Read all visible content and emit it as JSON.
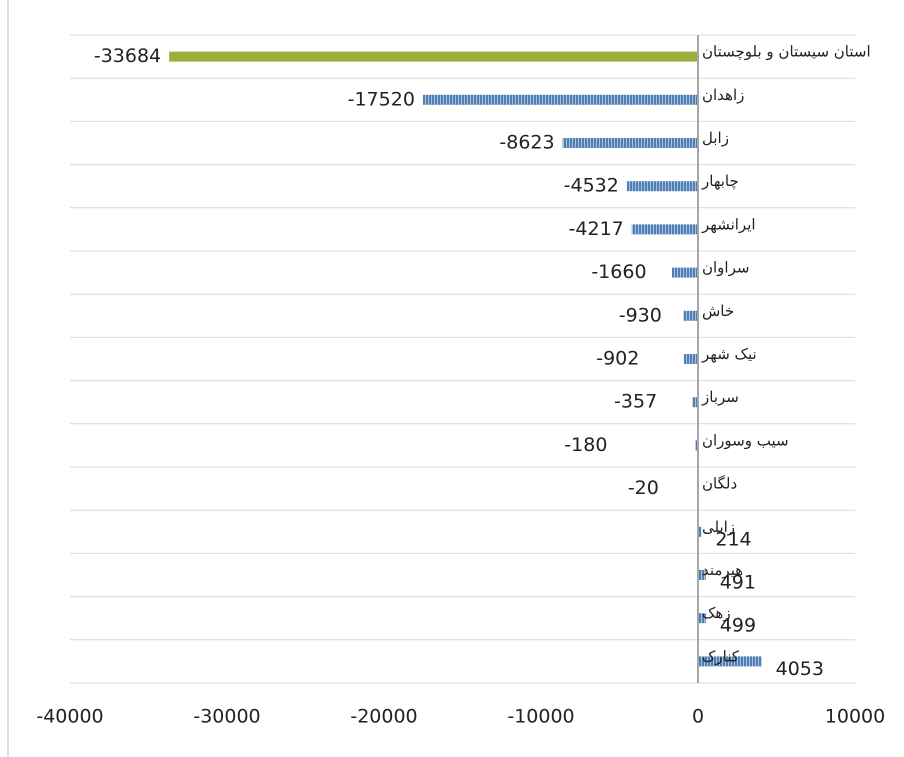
{
  "chart_data": {
    "type": "bar",
    "orientation": "horizontal",
    "categories": [
      "استان سیستان و بلوچستان",
      "زاهدان",
      "زابل",
      "چابهار",
      "ایرانشهر",
      "سراوان",
      "خاش",
      "نیک شهر",
      "سرباز",
      "سیب وسوران",
      "دلگان",
      "زابلی",
      "هیرمند",
      "زهک",
      "کنارک"
    ],
    "values": [
      -33684,
      -17520,
      -8623,
      -4532,
      -4217,
      -1660,
      -930,
      -902,
      -357,
      -180,
      -20,
      214,
      491,
      499,
      4053
    ],
    "colors": [
      "#9bb03a",
      "#5b86b8",
      "#5b86b8",
      "#5b86b8",
      "#5b86b8",
      "#5b86b8",
      "#5b86b8",
      "#5b86b8",
      "#5b86b8",
      "#5b86b8",
      "#5b86b8",
      "#5b86b8",
      "#5b86b8",
      "#5b86b8",
      "#5b86b8"
    ],
    "xlim": [
      -40000,
      10000
    ],
    "xticks": [
      -40000,
      -30000,
      -20000,
      -10000,
      0,
      10000
    ],
    "grid": true
  }
}
